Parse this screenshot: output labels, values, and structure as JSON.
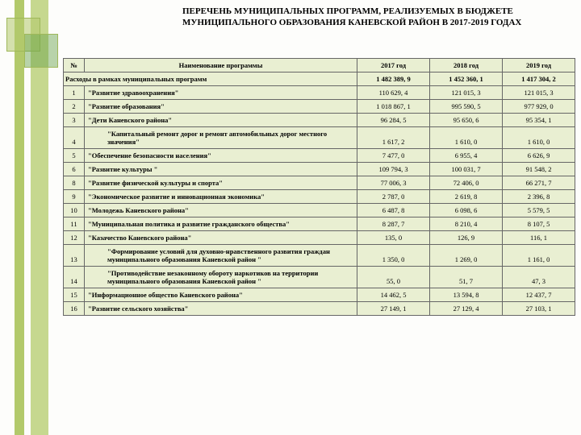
{
  "title": "ПЕРЕЧЕНЬ МУНИЦИПАЛЬНЫХ ПРОГРАММ, РЕАЛИЗУЕМЫХ В БЮДЖЕТЕ МУНИЦИПАЛЬНОГО ОБРАЗОВАНИЯ КАНЕВСКОЙ РАЙОН В 2017-2019 ГОДАХ",
  "headers": {
    "num": "№",
    "name": "Наименование программы",
    "y2017": "2017 год",
    "y2018": "2018 год",
    "y2019": "2019 год"
  },
  "summary": {
    "label": "Расходы в рамках муниципальных программ",
    "y2017": "1 482 389, 9",
    "y2018": "1 452 360, 1",
    "y2019": "1 417 304, 2"
  },
  "rows": [
    {
      "n": "1",
      "name": "\"Развитие здравоохранения\"",
      "y1": "110 629, 4",
      "y2": "121 015, 3",
      "y3": "121 015, 3"
    },
    {
      "n": "2",
      "name": "\"Развитие образования\"",
      "y1": "1 018 867, 1",
      "y2": "995 590, 5",
      "y3": "977 929, 0"
    },
    {
      "n": "3",
      "name": "\"Дети Каневского района\"",
      "y1": "96 284, 5",
      "y2": "95 650, 6",
      "y3": "95 354, 1"
    },
    {
      "n": "4",
      "name": "\"Капитальный ремонт дорог и ремонт автомобильных дорог местного значения\"",
      "indent": true,
      "y1": "1 617, 2",
      "y2": "1 610, 0",
      "y3": "1 610, 0"
    },
    {
      "n": "5",
      "name": "\"Обеспечение безопасности населения\"",
      "y1": "7 477, 0",
      "y2": "6 955, 4",
      "y3": "6 626, 9"
    },
    {
      "n": "6",
      "name": "\"Развитие культуры \"",
      "y1": "109 794, 3",
      "y2": "100 031, 7",
      "y3": "91 548, 2"
    },
    {
      "n": "8",
      "name": "\"Развитие физической культуры и спорта\"",
      "y1": "77 006, 3",
      "y2": "72 406, 0",
      "y3": "66 271, 7"
    },
    {
      "n": "9",
      "name": "\"Экономическое развитие и инновационная экономика\"",
      "y1": "2 787, 0",
      "y2": "2 619, 8",
      "y3": "2 396, 8"
    },
    {
      "n": "10",
      "name": "\"Молодежь Каневского района\"",
      "y1": "6 487, 8",
      "y2": "6 098, 6",
      "y3": "5 579, 5"
    },
    {
      "n": "11",
      "name": "\"Муниципальная политика и развитие гражданского общества\"",
      "y1": "8 287, 7",
      "y2": "8 210, 4",
      "y3": "8 107, 5"
    },
    {
      "n": "12",
      "name": "\"Казачество Каневского района\"",
      "y1": "135, 0",
      "y2": "126, 9",
      "y3": "116, 1"
    },
    {
      "n": "13",
      "name": "\"Формирование условий для духовно-нравственного развития граждан муниципального образования Каневской район \"",
      "indent": true,
      "y1": "1 350, 0",
      "y2": "1 269, 0",
      "y3": "1 161, 0"
    },
    {
      "n": "14",
      "name": "\"Противодействие незаконному обороту наркотиков на территории муниципального образования Каневской район \"",
      "indent": true,
      "y1": "55, 0",
      "y2": "51, 7",
      "y3": "47, 3"
    },
    {
      "n": "15",
      "name": "\"Информационное общество Каневского района\"",
      "y1": "14 462, 5",
      "y2": "13 594, 8",
      "y3": "12 437, 7"
    },
    {
      "n": "16",
      "name": "\"Развитие сельского хозяйства\"",
      "y1": "27 149, 1",
      "y2": "27 129, 4",
      "y3": "27 103, 1"
    }
  ],
  "colors": {
    "cell_bg": "#e9efd2",
    "border": "#666666",
    "accent_bar": "#b2c96b",
    "accent_bar2": "#c6d88f"
  }
}
